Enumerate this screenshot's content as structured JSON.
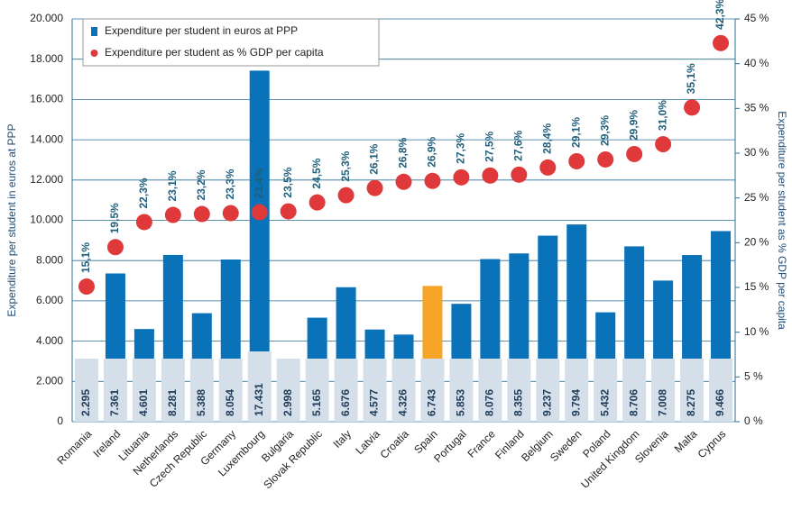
{
  "chart_data": {
    "type": "bar_line",
    "categories": [
      "Romania",
      "Ireland",
      "Lituania",
      "Netherlands",
      "Czech Republic",
      "Germany",
      "Luxembourg",
      "Bulgaria",
      "Slovak Republic",
      "Italy",
      "Latvia",
      "Croatia",
      "Spain",
      "Portugal",
      "France",
      "Finland",
      "Belgium",
      "Sweden",
      "Poland",
      "United Kingdom",
      "Slovenia",
      "Malta",
      "Cyprus"
    ],
    "series": [
      {
        "name": "Expenditure per student in euros at PPP",
        "type": "bar",
        "color": "#0a72b9",
        "colors": [
          "#0a72b9",
          "#0a72b9",
          "#0a72b9",
          "#0a72b9",
          "#0a72b9",
          "#0a72b9",
          "#0a72b9",
          "#0a72b9",
          "#0a72b9",
          "#0a72b9",
          "#0a72b9",
          "#0a72b9",
          "#f7a528",
          "#0a72b9",
          "#0a72b9",
          "#0a72b9",
          "#0a72b9",
          "#0a72b9",
          "#0a72b9",
          "#0a72b9",
          "#0a72b9",
          "#0a72b9",
          "#0a72b9"
        ],
        "values": [
          2295,
          7361,
          4601,
          8281,
          5388,
          8054,
          17431,
          2998,
          5165,
          6676,
          4577,
          4326,
          6743,
          5853,
          8076,
          8355,
          9237,
          9794,
          5432,
          8706,
          7008,
          8275,
          9466
        ],
        "value_labels": [
          "2.295",
          "7.361",
          "4.601",
          "8.281",
          "5.388",
          "8.054",
          "17.431",
          "2.998",
          "5.165",
          "6.676",
          "4.577",
          "4.326",
          "6.743",
          "5.853",
          "8.076",
          "8.355",
          "9.237",
          "9.794",
          "5.432",
          "8.706",
          "7.008",
          "8.275",
          "9.466"
        ]
      },
      {
        "name": "Expenditure per student as % GDP per capita",
        "type": "scatter",
        "axis": "y2",
        "color": "#e0393b",
        "values": [
          15.1,
          19.5,
          22.3,
          23.1,
          23.2,
          23.3,
          23.4,
          23.5,
          24.5,
          25.3,
          26.1,
          26.8,
          26.9,
          27.3,
          27.5,
          27.6,
          28.4,
          29.1,
          29.3,
          29.9,
          31.0,
          35.1,
          42.3
        ],
        "value_labels": [
          "15,1%",
          "19,5%",
          "22,3%",
          "23,1%",
          "23,2%",
          "23,3%",
          "23,4%",
          "23,5%",
          "24,5%",
          "25,3%",
          "26,1%",
          "26,8%",
          "26,9%",
          "27,3%",
          "27,5%",
          "27,6%",
          "28,4%",
          "29,1%",
          "29,3%",
          "29,9%",
          "31,0%",
          "35,1%",
          "42,3%"
        ]
      }
    ],
    "ylabel": "Expenditure per student in euros at PPP",
    "y2label": "Expenditure per student as % GDP per capita",
    "ylim": [
      0,
      20000
    ],
    "yticks": [
      0,
      {
        "value": 2000,
        "label": "2.000"
      },
      {
        "value": 4000,
        "label": "4.000"
      },
      {
        "value": 6000,
        "label": "6.000"
      },
      {
        "value": 8000,
        "label": "8.000"
      },
      {
        "value": 10000,
        "label": "10.000"
      },
      {
        "value": 12000,
        "label": "12.000"
      },
      {
        "value": 14000,
        "label": "14.000"
      },
      {
        "value": 16000,
        "label": "16.000"
      },
      {
        "value": 18000,
        "label": "18.000"
      },
      {
        "value": 20000,
        "label": "20.000"
      }
    ],
    "y2lim": [
      0,
      45
    ],
    "y2ticks": [
      {
        "value": 0,
        "label": "0 %"
      },
      {
        "value": 5,
        "label": "5 %"
      },
      {
        "value": 10,
        "label": "10 %"
      },
      {
        "value": 15,
        "label": "15 %"
      },
      {
        "value": 20,
        "label": "20 %"
      },
      {
        "value": 25,
        "label": "25 %"
      },
      {
        "value": 30,
        "label": "30 %"
      },
      {
        "value": 35,
        "label": "35 %"
      },
      {
        "value": 40,
        "label": "40 %"
      },
      {
        "value": 45,
        "label": "45 %"
      }
    ],
    "grid": true,
    "legend": "upper left"
  }
}
